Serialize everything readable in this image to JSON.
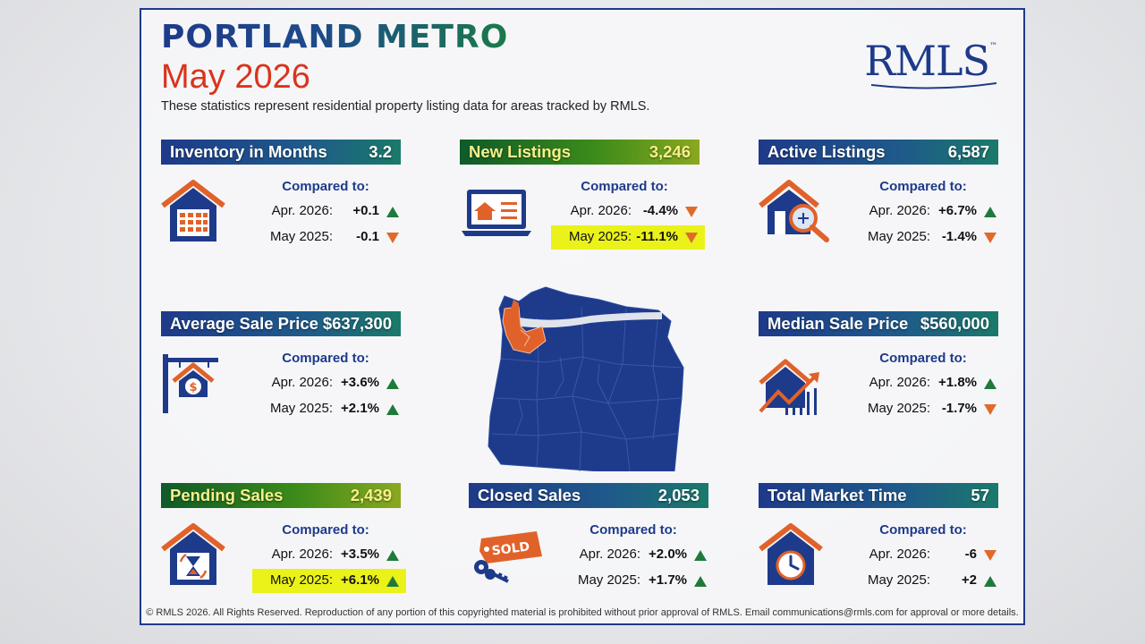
{
  "header": {
    "title": "PORTLAND METRO",
    "period": "May 2026",
    "description": "These statistics represent residential property listing data for areas tracked by RMLS.",
    "logo": "RMLS",
    "logo_tm": "™"
  },
  "colors": {
    "navy": "#1e3a8a",
    "accent_red": "#d9341c",
    "up_green": "#1e7a3a",
    "down_orange": "#e06a2c",
    "highlight": "#eaf21a"
  },
  "compared_label": "Compared to:",
  "panels": [
    {
      "title": "Inventory in Months",
      "value": "3.2",
      "icon": "house-calendar-icon",
      "rows": [
        {
          "label": "Apr. 2026:",
          "value": "+0.1",
          "dir": "up"
        },
        {
          "label": "May 2025:",
          "value": "-0.1",
          "dir": "down"
        }
      ]
    },
    {
      "title": "New Listings",
      "value": "3,246",
      "icon": "laptop-house-icon",
      "rows": [
        {
          "label": "Apr. 2026:",
          "value": "-4.4%",
          "dir": "down"
        },
        {
          "label": "May 2025:",
          "value": "-11.1%",
          "dir": "down",
          "highlight": true
        }
      ]
    },
    {
      "title": "Active Listings",
      "value": "6,587",
      "icon": "house-magnifier-icon",
      "rows": [
        {
          "label": "Apr. 2026:",
          "value": "+6.7%",
          "dir": "up"
        },
        {
          "label": "May 2025:",
          "value": "-1.4%",
          "dir": "down"
        }
      ]
    },
    {
      "title": "Average Sale Price",
      "value": "$637,300",
      "icon": "house-sign-dollar-icon",
      "rows": [
        {
          "label": "Apr. 2026:",
          "value": "+3.6%",
          "dir": "up"
        },
        {
          "label": "May 2025:",
          "value": "+2.1%",
          "dir": "up"
        }
      ]
    },
    {
      "title": "Median Sale Price",
      "value": "$560,000",
      "icon": "house-chart-icon",
      "rows": [
        {
          "label": "Apr. 2026:",
          "value": "+1.8%",
          "dir": "up"
        },
        {
          "label": "May 2025:",
          "value": "-1.7%",
          "dir": "down"
        }
      ]
    },
    {
      "title": "Pending Sales",
      "value": "2,439",
      "icon": "house-hourglass-icon",
      "rows": [
        {
          "label": "Apr. 2026:",
          "value": "+3.5%",
          "dir": "up"
        },
        {
          "label": "May 2025:",
          "value": "+6.1%",
          "dir": "up",
          "highlight": true
        }
      ]
    },
    {
      "title": "Closed Sales",
      "value": "2,053",
      "icon": "sold-tag-keys-icon",
      "rows": [
        {
          "label": "Apr. 2026:",
          "value": "+2.0%",
          "dir": "up"
        },
        {
          "label": "May 2025:",
          "value": "+1.7%",
          "dir": "up"
        }
      ]
    },
    {
      "title": "Total Market Time",
      "value": "57",
      "icon": "house-clock-icon",
      "rows": [
        {
          "label": "Apr. 2026:",
          "value": "-6",
          "dir": "down"
        },
        {
          "label": "May 2025:",
          "value": "+2",
          "dir": "up"
        }
      ]
    }
  ],
  "sold_tag": "SOLD",
  "map": {
    "icon": "oregon-map-icon"
  },
  "footer": "© RMLS 2026. All Rights Reserved. Reproduction of any portion of this copyrighted material is prohibited without prior approval of RMLS. Email communications@rmls.com for approval or more details."
}
